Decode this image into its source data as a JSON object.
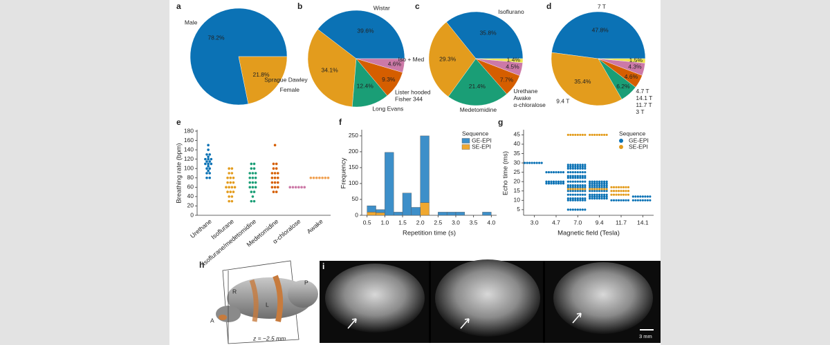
{
  "chart_data": [
    {
      "type": "pie",
      "panel": "a",
      "categories": [
        "Male",
        "Female"
      ],
      "values": [
        78.2,
        21.8
      ],
      "value_labels": [
        "78.2%",
        "21.8%"
      ],
      "colors": [
        "#0b72b5",
        "#e39c1d"
      ]
    },
    {
      "type": "pie",
      "panel": "b",
      "categories": [
        "Wistar",
        "Sprague Dawley",
        "Long Evans",
        "Lister hooded",
        "Fisher 344"
      ],
      "values": [
        39.6,
        34.1,
        12.4,
        9.3,
        4.6
      ],
      "value_labels": [
        "39.6%",
        "34.1%",
        "12.4%",
        "9.3%",
        "4.6%"
      ],
      "colors": [
        "#0b72b5",
        "#e39c1d",
        "#1a9e76",
        "#d55e00",
        "#cc79a7"
      ]
    },
    {
      "type": "pie",
      "panel": "c",
      "categories": [
        "Isoflurano",
        "Iso + Med",
        "Medetomidine",
        "Urethane",
        "Awake",
        "α-chloralose"
      ],
      "values": [
        35.8,
        29.3,
        21.4,
        7.7,
        4.5,
        1.4
      ],
      "value_labels": [
        "35.8%",
        "29.3%",
        "21.4%",
        "7.7%",
        "4.5%",
        "1.4%"
      ],
      "colors": [
        "#0b72b5",
        "#e39c1d",
        "#1a9e76",
        "#d55e00",
        "#cc79a7",
        "#ede24b"
      ]
    },
    {
      "type": "pie",
      "panel": "d",
      "categories": [
        "7 T",
        "9.4 T",
        "4.7 T",
        "14.1 T",
        "11.7 T",
        "3 T"
      ],
      "values": [
        47.8,
        35.4,
        6.2,
        4.6,
        4.3,
        1.5
      ],
      "value_labels": [
        "47.8%",
        "35.4%",
        "6.2%",
        "4.6%",
        "4.3%",
        "1.5%"
      ],
      "colors": [
        "#0b72b5",
        "#e39c1d",
        "#1a9e76",
        "#d55e00",
        "#cc79a7",
        "#ede24b"
      ]
    },
    {
      "type": "strip",
      "panel": "e",
      "y_label": "Breathing rate (bpm)",
      "categories": [
        "Urethane",
        "Isoflurane",
        "Isoflurane/medetomidine",
        "Medetomidine",
        "α-chloralose",
        "Awake"
      ],
      "colors": [
        "#0b72b5",
        "#e39c1d",
        "#1a9e76",
        "#d55e00",
        "#cc79a7",
        "#f0a050"
      ],
      "values": [
        [
          150,
          140,
          130,
          130,
          125,
          120,
          120,
          120,
          115,
          115,
          110,
          110,
          110,
          105,
          100,
          100,
          95,
          90,
          90,
          80,
          80
        ],
        [
          100,
          100,
          90,
          90,
          80,
          80,
          80,
          70,
          70,
          70,
          60,
          60,
          60,
          60,
          50,
          50,
          50,
          40,
          40,
          30,
          30
        ],
        [
          110,
          110,
          100,
          100,
          90,
          90,
          90,
          80,
          80,
          80,
          70,
          70,
          70,
          60,
          60,
          60,
          50,
          50,
          40,
          30,
          30
        ],
        [
          150,
          110,
          110,
          100,
          100,
          90,
          90,
          90,
          80,
          80,
          80,
          70,
          70,
          70,
          60,
          60,
          60,
          50,
          50
        ],
        [
          60,
          60,
          60,
          60,
          60,
          60
        ],
        [
          80,
          80,
          80,
          80,
          80,
          80,
          80
        ]
      ],
      "ylim": [
        0,
        180
      ],
      "yticks": [
        0,
        20,
        40,
        60,
        80,
        100,
        120,
        140,
        160,
        180
      ]
    },
    {
      "type": "histogram",
      "panel": "f",
      "x_label": "Repetition time (s)",
      "y_label": "Frequency",
      "legend_title": "Sequence",
      "legend": "upper right",
      "bins": [
        0.5,
        0.75,
        1.0,
        1.25,
        1.5,
        1.75,
        2.0,
        2.25,
        2.5,
        2.75,
        3.0,
        3.25,
        3.5,
        3.75,
        4.0
      ],
      "series": [
        {
          "name": "GE-EPI",
          "color": "#3d8fc9",
          "values": [
            20,
            10,
            198,
            10,
            70,
            25,
            210,
            0,
            10,
            10,
            10,
            0,
            0,
            10
          ]
        },
        {
          "name": "SE-EPI",
          "color": "#f0a830",
          "values": [
            10,
            8,
            0,
            0,
            0,
            0,
            40,
            0,
            0,
            0,
            0,
            0,
            0,
            0
          ]
        }
      ],
      "xlim": [
        0.35,
        4.15
      ],
      "xticks": [
        0.5,
        {
          "value": 1,
          "label": "1.0"
        },
        1.5,
        {
          "value": 2,
          "label": "2.0"
        },
        2.5,
        {
          "value": 3,
          "label": "3.0"
        },
        3.5,
        {
          "value": 4,
          "label": "4.0"
        }
      ],
      "ylim": [
        0,
        265
      ],
      "yticks": [
        0,
        50,
        100,
        150,
        200,
        250
      ]
    },
    {
      "type": "scatter",
      "panel": "g",
      "x_label": "Magnetic field (Tesla)",
      "y_label": "Echo time (ms)",
      "legend_title": "Sequence",
      "legend": "upper right",
      "categories": [
        "3.0",
        "4.7",
        "7.0",
        "9.4",
        "11.7",
        "14.1"
      ],
      "series": [
        {
          "name": "GE-EPI",
          "color": "#0b72b5",
          "x": [
            "3.0",
            "4.7",
            "4.7",
            "4.7",
            "7.0",
            "7.0",
            "7.0",
            "7.0",
            "7.0",
            "7.0",
            "7.0",
            "7.0",
            "7.0",
            "7.0",
            "7.0",
            "7.0",
            "7.0",
            "7.0",
            "9.4",
            "9.4",
            "9.4",
            "9.4",
            "9.4",
            "9.4",
            "9.4",
            "9.4",
            "11.7",
            "14.1",
            "14.1"
          ],
          "values": [
            30,
            25,
            20,
            19,
            29,
            28,
            27,
            25,
            23,
            22,
            20,
            18,
            17,
            15,
            13,
            11,
            10,
            5,
            20,
            19,
            18,
            17,
            15,
            13,
            12,
            11,
            10,
            12,
            10
          ]
        },
        {
          "name": "SE-EPI",
          "color": "#e39c1d",
          "x": [
            "7.0",
            "9.4",
            "7.0",
            "9.4",
            "11.7",
            "11.7",
            "11.7"
          ],
          "values": [
            45,
            45,
            16,
            16,
            17,
            15,
            13
          ]
        }
      ],
      "ylim": [
        2,
        47
      ],
      "yticks": [
        5,
        10,
        15,
        20,
        25,
        30,
        35,
        40,
        45
      ]
    }
  ],
  "figure_parts": {
    "h": {
      "panel": "h",
      "labels": [
        "R",
        "L",
        "A",
        "P"
      ],
      "slice": "z = −2.5 mm"
    },
    "i": {
      "panel": "i",
      "scale_bar": "3 mm"
    }
  }
}
